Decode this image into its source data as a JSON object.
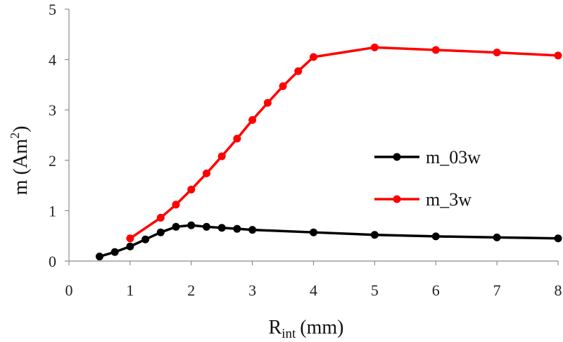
{
  "chart_data": {
    "type": "line",
    "xlabel": {
      "main": "R",
      "sub": "int",
      "unit": "(mm)"
    },
    "ylabel": {
      "main": "m (Am",
      "sup": "2",
      "close": ")"
    },
    "xlim": [
      0,
      8
    ],
    "ylim": [
      0,
      5
    ],
    "xticks": [
      "0",
      "1",
      "2",
      "3",
      "4",
      "5",
      "6",
      "7",
      "8"
    ],
    "yticks": [
      "0",
      "1",
      "2",
      "3",
      "4",
      "5"
    ],
    "grid": false,
    "legend_position": "right",
    "series": [
      {
        "name": "m_03w",
        "color": "#000000",
        "points": [
          [
            0.5,
            0.09
          ],
          [
            0.75,
            0.18
          ],
          [
            1.0,
            0.29
          ],
          [
            1.25,
            0.43
          ],
          [
            1.5,
            0.57
          ],
          [
            1.75,
            0.68
          ],
          [
            2.0,
            0.71
          ],
          [
            2.25,
            0.68
          ],
          [
            2.5,
            0.66
          ],
          [
            2.75,
            0.64
          ],
          [
            3.0,
            0.62
          ],
          [
            4.0,
            0.57
          ],
          [
            5.0,
            0.52
          ],
          [
            6.0,
            0.49
          ],
          [
            7.0,
            0.47
          ],
          [
            8.0,
            0.45
          ]
        ]
      },
      {
        "name": "m_3w",
        "color": "#ff0000",
        "points": [
          [
            1.0,
            0.45
          ],
          [
            1.5,
            0.86
          ],
          [
            1.75,
            1.12
          ],
          [
            2.0,
            1.42
          ],
          [
            2.25,
            1.74
          ],
          [
            2.5,
            2.08
          ],
          [
            2.75,
            2.43
          ],
          [
            3.0,
            2.8
          ],
          [
            3.25,
            3.14
          ],
          [
            3.5,
            3.47
          ],
          [
            3.75,
            3.77
          ],
          [
            4.0,
            4.05
          ],
          [
            5.0,
            4.24
          ],
          [
            6.0,
            4.19
          ],
          [
            7.0,
            4.14
          ],
          [
            8.0,
            4.08
          ]
        ]
      }
    ]
  }
}
